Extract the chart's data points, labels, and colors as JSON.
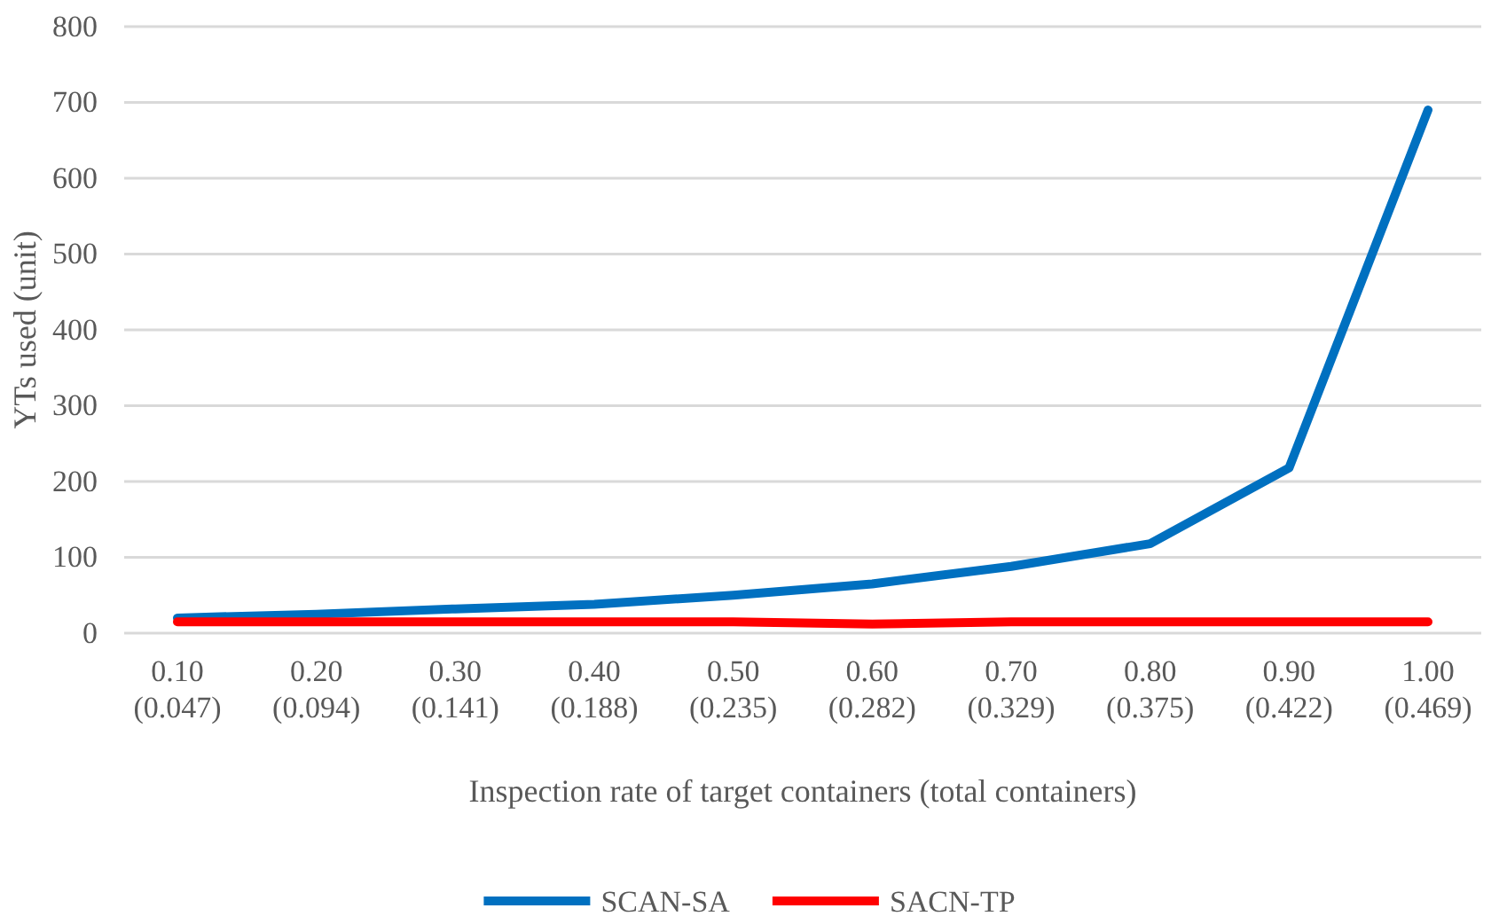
{
  "chart_data": {
    "type": "line",
    "xlabel": "Inspection rate of target containers (total containers)",
    "ylabel": "YTs used (unit)",
    "categories": [
      "0.10\n(0.047)",
      "0.20\n(0.094)",
      "0.30\n(0.141)",
      "0.40\n(0.188)",
      "0.50\n(0.235)",
      "0.60\n(0.282)",
      "0.70\n(0.329)",
      "0.80\n(0.375)",
      "0.90\n(0.422)",
      "1.00\n(0.469)"
    ],
    "series": [
      {
        "name": "SCAN-SA",
        "color": "#0070c0",
        "values": [
          20,
          25,
          32,
          38,
          50,
          65,
          88,
          118,
          218,
          690
        ]
      },
      {
        "name": "SACN-TP",
        "color": "#ff0000",
        "values": [
          15,
          15,
          15,
          15,
          15,
          12,
          15,
          15,
          15,
          15
        ]
      }
    ],
    "ylim": [
      0,
      800
    ],
    "yticks": [
      0,
      100,
      200,
      300,
      400,
      500,
      600,
      700,
      800
    ],
    "grid": "y",
    "legend": "bottom",
    "marker": "none",
    "line_style": "solid"
  }
}
